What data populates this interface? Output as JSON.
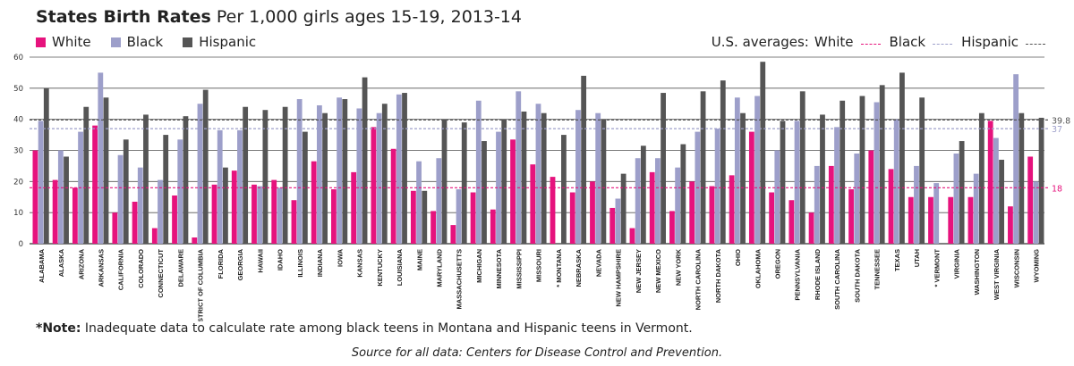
{
  "title_bold": "States Birth Rates",
  "title_rest": "Per 1,000 girls ages 15-19, 2013-14",
  "legend": [
    {
      "label": "White",
      "color": "#e6137d"
    },
    {
      "label": "Black",
      "color": "#9d9fca"
    },
    {
      "label": "Hispanic",
      "color": "#555555"
    }
  ],
  "avg_legend": {
    "prefix": "U.S. averages:",
    "items": [
      {
        "label": "White",
        "color": "#e6137d",
        "value": 18,
        "display": "18"
      },
      {
        "label": "Black",
        "color": "#9d9fca",
        "value": 37,
        "display": "37"
      },
      {
        "label": "Hispanic",
        "color": "#555555",
        "value": 39.8,
        "display": "39.8"
      }
    ]
  },
  "note_bold": "*Note:",
  "note_text": "Inadequate data to calculate rate among black teens in Montana and Hispanic teens in Vermont.",
  "source": "Source for all data: Centers for Disease Control and Prevention.",
  "chart_data": {
    "type": "bar",
    "title": "States Birth Rates Per 1,000 girls ages 15-19, 2013-14",
    "xlabel": "",
    "ylabel": "",
    "ylim": [
      0,
      60
    ],
    "yticks": [
      0,
      10,
      20,
      30,
      40,
      50,
      60
    ],
    "categories": [
      "ALABAMA",
      "ALASKA",
      "ARIZONA",
      "ARKANSAS",
      "CALIFORNIA",
      "COLORADO",
      "CONNECTICUT",
      "DELAWARE",
      "DISTRICT OF COLUMBIA",
      "FLORIDA",
      "GEORGIA",
      "HAWAII",
      "IDAHO",
      "ILLINOIS",
      "INDIANA",
      "IOWA",
      "KANSAS",
      "KENTUCKY",
      "LOUISIANA",
      "MAINE",
      "MARYLAND",
      "MASSACHUSETTS",
      "MICHIGAN",
      "MINNESOTA",
      "MISSISSIPPI",
      "MISSOURI",
      "* MONTANA",
      "NEBRASKA",
      "NEVADA",
      "NEW HAMPSHIRE",
      "NEW JERSEY",
      "NEW MEXICO",
      "NEW YORK",
      "NORTH CAROLINA",
      "NORTH DAKOTA",
      "OHIO",
      "OKLAHOMA",
      "OREGON",
      "PENNSYLVANIA",
      "RHODE ISLAND",
      "SOUTH CAROLINA",
      "SOUTH DAKOTA",
      "TENNESSEE",
      "TEXAS",
      "UTAH",
      "* VERMONT",
      "VIRGINIA",
      "WASHINGTON",
      "WEST VIRGINIA",
      "WISCONSIN",
      "WYOMING"
    ],
    "series": [
      {
        "name": "White",
        "color": "#e6137d",
        "values": [
          30,
          20.5,
          18,
          38,
          10,
          13.5,
          5,
          15.5,
          2,
          19,
          23.5,
          19,
          20.5,
          14,
          26.5,
          17.5,
          23,
          37.5,
          30.5,
          17,
          10.5,
          6,
          16.5,
          11,
          33.5,
          25.5,
          21.5,
          16.5,
          20,
          11.5,
          5,
          23,
          10.5,
          20,
          18.5,
          22,
          36,
          16.5,
          14,
          10,
          25,
          17.5,
          30,
          24,
          15,
          15,
          15,
          15,
          39.5,
          12,
          28
        ]
      },
      {
        "name": "Black",
        "color": "#9d9fca",
        "values": [
          39.5,
          30,
          36,
          55,
          28.5,
          24.5,
          20.5,
          33.5,
          45,
          36.5,
          36.5,
          18.5,
          18,
          46.5,
          44.5,
          47,
          43.5,
          42,
          48,
          26.5,
          27.5,
          17.5,
          46,
          36,
          49,
          45,
          null,
          43,
          42,
          14.5,
          27.5,
          27.5,
          24.5,
          36,
          37,
          47,
          47.5,
          30,
          39.5,
          25,
          37.5,
          29,
          45.5,
          40,
          25,
          19.5,
          29,
          22.5,
          34,
          54.5,
          20
        ]
      },
      {
        "name": "Hispanic",
        "color": "#555555",
        "values": [
          50,
          28,
          44,
          47,
          33.5,
          41.5,
          35,
          41,
          49.5,
          24.5,
          44,
          43,
          44,
          36,
          42,
          46.5,
          53.5,
          45,
          48.5,
          17,
          40,
          39,
          33,
          40,
          42.5,
          42,
          35,
          54,
          40,
          22.5,
          31.5,
          48.5,
          32,
          49,
          52.5,
          42,
          58.5,
          39.5,
          49,
          41.5,
          46,
          47.5,
          51,
          55,
          47,
          null,
          33,
          42,
          27,
          42,
          40.5
        ]
      }
    ]
  }
}
